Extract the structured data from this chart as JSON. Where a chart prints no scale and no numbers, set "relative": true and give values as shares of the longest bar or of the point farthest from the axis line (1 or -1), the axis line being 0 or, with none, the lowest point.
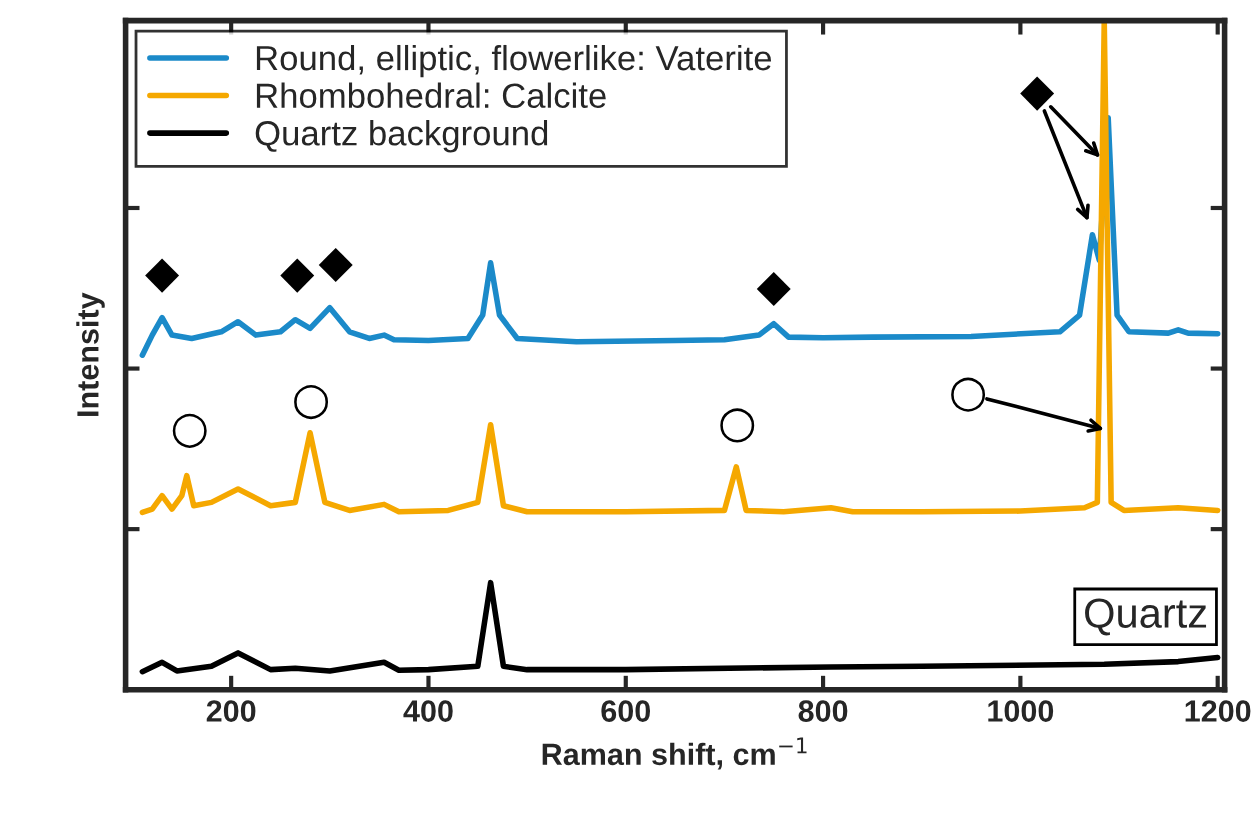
{
  "chart_data": {
    "type": "line",
    "relative": true,
    "xlabel": "Raman shift, cm$^{−1}$",
    "ylabel": "Intensity",
    "xlim": [
      93,
      1207
    ],
    "xticks": [
      200,
      400,
      600,
      800,
      1000,
      1200
    ],
    "legend": "top left",
    "grid": false,
    "marker": "none",
    "line_style": "solid",
    "series": [
      {
        "name": "Round, elliptic, flowerlike: Vaterite",
        "color": "#1b8ac9",
        "x": [
          110,
          120,
          130,
          140,
          160,
          190,
          207,
          225,
          250,
          265,
          280,
          300,
          320,
          340,
          355,
          365,
          400,
          440,
          455,
          463,
          472,
          490,
          550,
          650,
          700,
          735,
          750,
          765,
          800,
          850,
          950,
          1040,
          1060,
          1073,
          1080,
          1089,
          1098,
          1110,
          1150,
          1160,
          1170,
          1200
        ],
        "values": [
          0.5,
          0.53,
          0.556,
          0.53,
          0.525,
          0.535,
          0.55,
          0.53,
          0.535,
          0.553,
          0.54,
          0.571,
          0.535,
          0.525,
          0.53,
          0.523,
          0.522,
          0.525,
          0.56,
          0.638,
          0.56,
          0.525,
          0.52,
          0.522,
          0.523,
          0.53,
          0.547,
          0.527,
          0.526,
          0.527,
          0.528,
          0.535,
          0.56,
          0.68,
          0.642,
          0.855,
          0.56,
          0.535,
          0.533,
          0.538,
          0.533,
          0.532
        ]
      },
      {
        "name": "Rhombohedral: Calcite",
        "color": "#f5a800",
        "x": [
          110,
          120,
          130,
          140,
          150,
          155,
          162,
          180,
          207,
          240,
          265,
          280,
          295,
          320,
          355,
          370,
          420,
          450,
          463,
          476,
          500,
          600,
          700,
          712,
          722,
          760,
          808,
          830,
          900,
          1000,
          1065,
          1078,
          1085,
          1092,
          1105,
          1160,
          1200
        ],
        "values": [
          0.265,
          0.27,
          0.29,
          0.27,
          0.29,
          0.32,
          0.275,
          0.28,
          0.3,
          0.275,
          0.28,
          0.384,
          0.28,
          0.268,
          0.277,
          0.266,
          0.268,
          0.28,
          0.396,
          0.275,
          0.266,
          0.266,
          0.268,
          0.333,
          0.268,
          0.266,
          0.272,
          0.266,
          0.266,
          0.267,
          0.272,
          0.28,
          1.0,
          0.28,
          0.268,
          0.272,
          0.268
        ]
      },
      {
        "name": "Quartz background",
        "color": "#000000",
        "x": [
          110,
          130,
          145,
          180,
          207,
          240,
          265,
          300,
          355,
          370,
          400,
          450,
          463,
          476,
          500,
          600,
          808,
          900,
          1085,
          1160,
          1200
        ],
        "values": [
          0.027,
          0.041,
          0.028,
          0.035,
          0.055,
          0.03,
          0.032,
          0.028,
          0.041,
          0.029,
          0.03,
          0.035,
          0.16,
          0.035,
          0.03,
          0.03,
          0.034,
          0.035,
          0.038,
          0.042,
          0.048
        ]
      }
    ],
    "annotations": [
      {
        "text": "◆",
        "x": 130,
        "y": 0.556
      },
      {
        "text": "◆",
        "x": 265,
        "y": 0.553
      },
      {
        "text": "◆",
        "x": 300,
        "y": 0.571
      },
      {
        "text": "◆",
        "x": 750,
        "y": 0.547
      },
      {
        "text": "◆",
        "x": 1073,
        "y": 0.68
      },
      {
        "text": "○",
        "x": 155,
        "y": 0.32
      },
      {
        "text": "○",
        "x": 280,
        "y": 0.384
      },
      {
        "text": "○",
        "x": 712,
        "y": 0.333
      },
      {
        "text": "○",
        "x": 1085,
        "y": 0.389
      },
      "Quartz"
    ]
  }
}
